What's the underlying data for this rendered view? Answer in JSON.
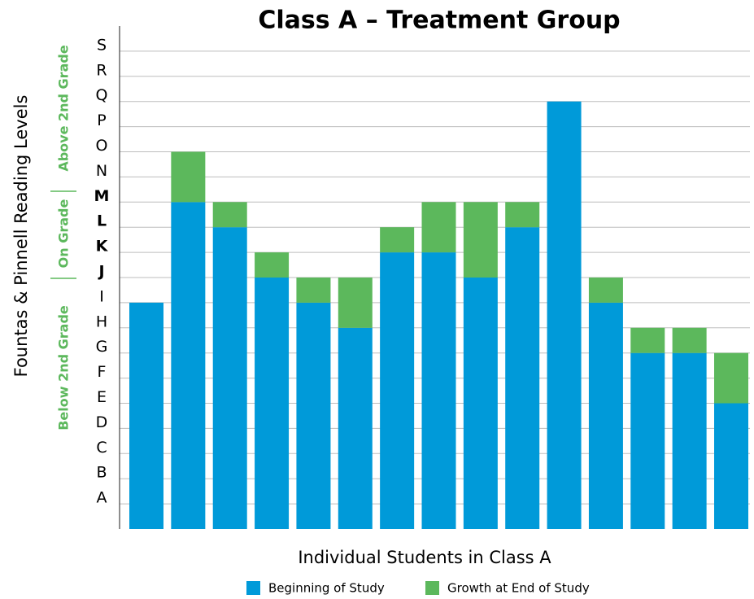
{
  "chart_data": {
    "type": "stacked_bar",
    "title": "Class A – Treatment Group",
    "x_label": "Individual Students in Class A",
    "y_label": "Fountas & Pinnell Reading Levels",
    "annotations": [
      "Above 2nd Grade",
      "On Grade",
      "Below 2nd Grade"
    ],
    "categories": [
      null,
      null,
      null,
      null,
      null,
      null,
      null,
      null,
      null,
      null,
      null,
      null,
      null,
      null,
      null
    ],
    "series": [
      {
        "name": "Beginning of Study",
        "color": "#009ad9",
        "values": [
          9,
          13,
          12,
          10,
          9,
          8,
          11,
          11,
          10,
          12,
          17,
          9,
          7,
          7,
          5
        ]
      },
      {
        "name": "Growth at End of Study",
        "color": "#5cb85c",
        "values": [
          0,
          2,
          1,
          1,
          1,
          2,
          1,
          2,
          3,
          1,
          0,
          1,
          1,
          1,
          2
        ]
      }
    ],
    "ylim": [
      0,
      20
    ],
    "yticks": [
      {
        "value": 1,
        "label": "A"
      },
      {
        "value": 2,
        "label": "B"
      },
      {
        "value": 3,
        "label": "C"
      },
      {
        "value": 4,
        "label": "D"
      },
      {
        "value": 5,
        "label": "E"
      },
      {
        "value": 6,
        "label": "F"
      },
      {
        "value": 7,
        "label": "G"
      },
      {
        "value": 8,
        "label": "H"
      },
      {
        "value": 9,
        "label": "I"
      },
      {
        "value": 10,
        "label": "J",
        "bold": true
      },
      {
        "value": 11,
        "label": "K",
        "bold": true
      },
      {
        "value": 12,
        "label": "L",
        "bold": true
      },
      {
        "value": 13,
        "label": "M",
        "bold": true
      },
      {
        "value": 14,
        "label": "N"
      },
      {
        "value": 15,
        "label": "O"
      },
      {
        "value": 16,
        "label": "P"
      },
      {
        "value": 17,
        "label": "Q"
      },
      {
        "value": 18,
        "label": "R"
      },
      {
        "value": 19,
        "label": "S"
      }
    ],
    "grid": true,
    "legend": "bottom"
  }
}
